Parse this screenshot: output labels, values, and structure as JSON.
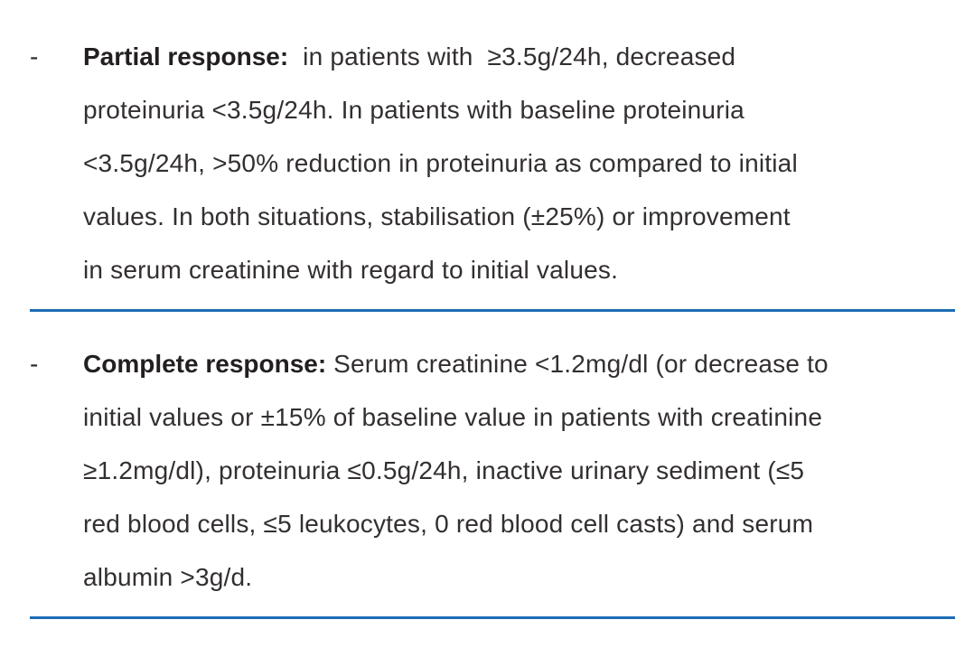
{
  "divider_color": "#1c6cb5",
  "text_color": "#332f30",
  "bold_text_color": "#231f20",
  "bullets": [
    {
      "marker": "-",
      "lead": "Partial response:",
      "lines": [
        "  in patients with  ≥3.5g/24h, decreased",
        "proteinuria <3.5g/24h. In patients with baseline proteinuria",
        "<3.5g/24h, >50% reduction in proteinuria as compared to initial",
        "values. In both situations, stabilisation (±25%) or improvement",
        "in serum creatinine with regard to initial values."
      ]
    },
    {
      "marker": "-",
      "lead": "Complete response:",
      "lines": [
        " Serum creatinine <1.2mg/dl (or decrease to",
        "initial values or ±15% of baseline value in patients with creatinine",
        "≥1.2mg/dl), proteinuria ≤0.5g/24h, inactive urinary sediment (≤5",
        "red blood cells, ≤5 leukocytes, 0 red blood cell casts) and serum",
        "albumin >3g/d."
      ]
    }
  ]
}
